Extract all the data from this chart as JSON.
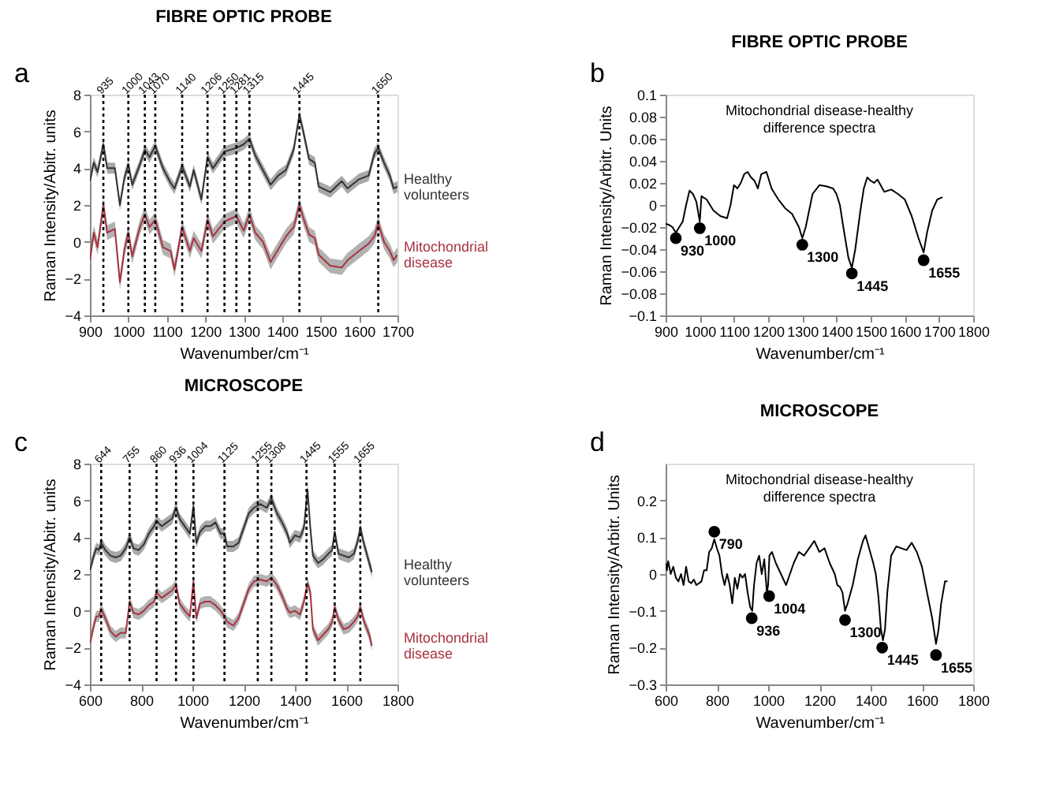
{
  "chart_data": [
    {
      "type": "line",
      "title": "FIBRE OPTIC PROBE",
      "annotations": [
        "a"
      ],
      "xlabel": "Wavenumber/cm⁻¹",
      "ylabel": "Raman Intensity/Abitr. units",
      "x": [
        900,
        910,
        920,
        935,
        945,
        965,
        978,
        990,
        1000,
        1010,
        1030,
        1043,
        1055,
        1070,
        1090,
        1110,
        1120,
        1140,
        1160,
        1170,
        1190,
        1206,
        1220,
        1250,
        1281,
        1300,
        1315,
        1330,
        1350,
        1370,
        1390,
        1410,
        1430,
        1445,
        1455,
        1470,
        1485,
        1495,
        1525,
        1555,
        1570,
        1600,
        1625,
        1640,
        1650,
        1665,
        1680,
        1690,
        1700
      ],
      "series": [
        {
          "name": "Healthy volunteers",
          "color": "#333333",
          "values": [
            3.3,
            4.3,
            3.8,
            5.3,
            4.0,
            4.0,
            2.0,
            3.5,
            4.2,
            3.1,
            4.2,
            5.0,
            4.6,
            5.2,
            4.0,
            3.2,
            2.9,
            4.1,
            3.0,
            3.9,
            2.3,
            4.6,
            4.0,
            4.9,
            5.1,
            5.3,
            5.6,
            4.7,
            3.9,
            3.1,
            3.6,
            3.9,
            5.0,
            6.9,
            6.0,
            4.5,
            4.3,
            3.0,
            2.7,
            3.3,
            2.9,
            3.4,
            3.6,
            4.8,
            5.1,
            4.3,
            3.6,
            2.9,
            3.0
          ],
          "lower": [
            3.0,
            4.0,
            3.5,
            5.0,
            3.7,
            3.7,
            1.7,
            3.2,
            3.9,
            2.8,
            3.9,
            4.7,
            4.3,
            4.9,
            3.7,
            2.9,
            2.6,
            3.8,
            2.7,
            3.6,
            2.0,
            4.3,
            3.7,
            4.6,
            4.8,
            5.0,
            5.3,
            4.4,
            3.6,
            2.8,
            3.3,
            3.6,
            4.7,
            6.6,
            5.7,
            4.2,
            4.0,
            2.7,
            2.4,
            3.0,
            2.6,
            3.1,
            3.3,
            4.5,
            4.8,
            4.0,
            3.3,
            2.6,
            2.7
          ],
          "upper": [
            3.6,
            4.6,
            4.1,
            5.6,
            4.3,
            4.3,
            2.3,
            3.8,
            4.5,
            3.4,
            4.5,
            5.3,
            4.9,
            5.5,
            4.3,
            3.5,
            3.2,
            4.4,
            3.3,
            4.2,
            2.6,
            4.9,
            4.3,
            5.2,
            5.4,
            5.6,
            5.9,
            5.0,
            4.2,
            3.4,
            3.9,
            4.2,
            5.3,
            7.2,
            6.3,
            4.8,
            4.6,
            3.3,
            3.0,
            3.6,
            3.2,
            3.7,
            3.9,
            5.1,
            5.4,
            4.6,
            3.9,
            3.2,
            3.3
          ]
        },
        {
          "name": "Mitochondrial disease",
          "color": "#a83240",
          "values": [
            -1.0,
            0.5,
            -0.3,
            2.0,
            0.5,
            0.7,
            -2.2,
            -0.4,
            0.5,
            -0.8,
            0.8,
            1.5,
            0.8,
            1.2,
            -0.3,
            -0.5,
            -1.5,
            0.8,
            -0.5,
            0.2,
            -0.5,
            1.2,
            0.3,
            1.1,
            1.4,
            0.6,
            1.5,
            0.5,
            0.0,
            -1.1,
            -0.4,
            0.3,
            0.8,
            2.0,
            1.3,
            0.4,
            0.2,
            -0.7,
            -1.3,
            -1.4,
            -1.0,
            -0.5,
            -0.1,
            0.3,
            1.0,
            0.0,
            -0.5,
            -1.0,
            -0.7
          ],
          "lower": [
            -1.4,
            0.1,
            -0.7,
            1.6,
            0.1,
            0.3,
            -2.6,
            -0.8,
            0.1,
            -1.2,
            0.4,
            1.1,
            0.4,
            0.8,
            -0.7,
            -0.9,
            -1.9,
            0.4,
            -0.9,
            -0.2,
            -0.9,
            0.8,
            -0.1,
            0.7,
            1.0,
            0.2,
            1.1,
            0.1,
            -0.4,
            -1.5,
            -0.8,
            -0.1,
            0.4,
            1.6,
            0.9,
            0.0,
            -0.2,
            -1.1,
            -1.7,
            -1.8,
            -1.4,
            -0.9,
            -0.5,
            -0.1,
            0.6,
            -0.4,
            -0.9,
            -1.4,
            -1.1
          ],
          "upper": [
            -0.6,
            0.9,
            0.1,
            2.4,
            0.9,
            1.1,
            -1.8,
            0.0,
            0.9,
            -0.4,
            1.2,
            1.9,
            1.2,
            1.6,
            0.1,
            -0.1,
            -1.1,
            1.2,
            -0.1,
            0.6,
            -0.1,
            1.6,
            0.7,
            1.5,
            1.8,
            1.0,
            1.9,
            0.9,
            0.4,
            -0.7,
            0.0,
            0.7,
            1.2,
            2.4,
            1.7,
            0.8,
            0.6,
            -0.3,
            -0.9,
            -1.0,
            -0.6,
            -0.1,
            0.3,
            0.7,
            1.4,
            0.4,
            -0.1,
            -0.6,
            -0.3
          ]
        }
      ],
      "xlim": [
        900,
        1700
      ],
      "xticks": [
        900,
        1000,
        1100,
        1200,
        1300,
        1400,
        1500,
        1600,
        1700
      ],
      "ylim": [
        -4,
        8
      ],
      "yticks": [
        -4,
        -2,
        0,
        2,
        4,
        6,
        8
      ],
      "ref_lines": [
        {
          "axis": "x",
          "value": 935,
          "label": "935",
          "line_style": "dotted"
        },
        {
          "axis": "x",
          "value": 1000,
          "label": "1000",
          "line_style": "dotted"
        },
        {
          "axis": "x",
          "value": 1043,
          "label": "1043",
          "line_style": "dotted"
        },
        {
          "axis": "x",
          "value": 1070,
          "label": "1070",
          "line_style": "dotted"
        },
        {
          "axis": "x",
          "value": 1140,
          "label": "1140",
          "line_style": "dotted"
        },
        {
          "axis": "x",
          "value": 1206,
          "label": "1206",
          "line_style": "dotted"
        },
        {
          "axis": "x",
          "value": 1250,
          "label": "1250",
          "line_style": "dotted"
        },
        {
          "axis": "x",
          "value": 1281,
          "label": "1281",
          "line_style": "dotted"
        },
        {
          "axis": "x",
          "value": 1315,
          "label": "1315",
          "line_style": "dotted"
        },
        {
          "axis": "x",
          "value": 1445,
          "label": "1445",
          "line_style": "dotted"
        },
        {
          "axis": "x",
          "value": 1650,
          "label": "1650",
          "line_style": "dotted"
        }
      ],
      "legend": false,
      "grid": false
    },
    {
      "type": "line",
      "title": "FIBRE OPTIC PROBE",
      "subtitle": "Mitochondrial disease-healthy\ndifference spectra",
      "xlabel": "Wavenumber/cm⁻¹",
      "ylabel": "Raman Intensity/Arbitr. Units",
      "annotations": [
        "b",
        {
          "text": "930",
          "x": 930,
          "y": -0.03
        },
        {
          "text": "1000",
          "x": 1000,
          "y": -0.021
        },
        {
          "text": "1300",
          "x": 1300,
          "y": -0.036
        },
        {
          "text": "1445",
          "x": 1445,
          "y": -0.062
        },
        {
          "text": "1655",
          "x": 1655,
          "y": -0.05
        }
      ],
      "series": [
        {
          "color": "#000000",
          "x": [
            900,
            910,
            920,
            930,
            940,
            950,
            960,
            970,
            980,
            990,
            1000,
            1005,
            1020,
            1040,
            1060,
            1080,
            1090,
            1100,
            1110,
            1120,
            1130,
            1140,
            1150,
            1160,
            1170,
            1180,
            1195,
            1210,
            1230,
            1250,
            1270,
            1290,
            1300,
            1310,
            1330,
            1350,
            1370,
            1390,
            1400,
            1410,
            1420,
            1435,
            1445,
            1455,
            1470,
            1480,
            1490,
            1500,
            1510,
            1520,
            1540,
            1560,
            1580,
            1600,
            1620,
            1640,
            1655,
            1665,
            1680,
            1695,
            1710
          ],
          "values": [
            -0.017,
            -0.018,
            -0.02,
            -0.025,
            -0.02,
            -0.015,
            0.0,
            0.013,
            0.01,
            0.003,
            -0.015,
            0.008,
            0.005,
            -0.005,
            -0.01,
            -0.012,
            0.0,
            0.018,
            0.015,
            0.02,
            0.028,
            0.03,
            0.025,
            0.022,
            0.015,
            0.028,
            0.03,
            0.015,
            0.005,
            -0.003,
            -0.008,
            -0.02,
            -0.03,
            -0.02,
            0.01,
            0.018,
            0.017,
            0.015,
            0.01,
            0.0,
            -0.02,
            -0.048,
            -0.057,
            -0.04,
            -0.005,
            0.015,
            0.025,
            0.022,
            0.02,
            0.023,
            0.012,
            0.014,
            0.01,
            0.005,
            -0.01,
            -0.03,
            -0.043,
            -0.025,
            -0.005,
            0.005,
            0.007
          ]
        },
        {
          "type": "scatter",
          "marker": "circle",
          "color": "#000000",
          "x": [
            930,
            1000,
            1300,
            1445,
            1655
          ],
          "values": [
            -0.03,
            -0.021,
            -0.036,
            -0.062,
            -0.05
          ]
        }
      ],
      "xlim": [
        900,
        1800
      ],
      "xticks": [
        900,
        1000,
        1100,
        1200,
        1300,
        1400,
        1500,
        1600,
        1700,
        1800
      ],
      "ylim": [
        -0.1,
        0.1
      ],
      "yticks": [
        -0.1,
        -0.08,
        -0.06,
        -0.04,
        -0.02,
        0,
        0.02,
        0.04,
        0.06,
        0.08,
        0.1
      ],
      "grid": false
    },
    {
      "type": "line",
      "title": "MICROSCOPE",
      "annotations": [
        "c"
      ],
      "xlabel": "Wavenumber/cm⁻¹",
      "ylabel": "Raman Intensity/Abitr. units",
      "x": [
        600,
        615,
        625,
        635,
        644,
        660,
        680,
        700,
        720,
        740,
        755,
        770,
        790,
        810,
        830,
        850,
        860,
        880,
        900,
        920,
        936,
        950,
        970,
        990,
        1004,
        1015,
        1030,
        1050,
        1070,
        1090,
        1110,
        1125,
        1135,
        1160,
        1180,
        1200,
        1220,
        1240,
        1265,
        1290,
        1308,
        1330,
        1350,
        1370,
        1380,
        1400,
        1420,
        1435,
        1449,
        1460,
        1470,
        1490,
        1510,
        1530,
        1545,
        1555,
        1570,
        1590,
        1610,
        1630,
        1645,
        1655,
        1670,
        1690,
        1700
      ],
      "series": [
        {
          "name": "Healthy volunteers",
          "color": "#333333",
          "values": [
            2.2,
            3.0,
            3.4,
            3.3,
            3.7,
            3.3,
            3.0,
            2.9,
            3.0,
            3.4,
            4.0,
            3.4,
            3.3,
            3.6,
            4.2,
            4.6,
            4.9,
            4.6,
            4.8,
            5.0,
            5.6,
            5.0,
            4.6,
            4.2,
            5.7,
            3.7,
            4.3,
            4.6,
            4.6,
            4.8,
            4.2,
            4.2,
            3.5,
            3.5,
            3.7,
            4.5,
            5.3,
            5.6,
            5.8,
            5.6,
            6.1,
            5.3,
            4.8,
            4.2,
            3.7,
            4.1,
            4.0,
            4.5,
            6.6,
            4.5,
            3.0,
            2.6,
            2.8,
            3.1,
            3.3,
            4.3,
            3.1,
            3.0,
            2.9,
            3.1,
            3.8,
            4.5,
            3.6,
            2.6,
            2.1
          ],
          "lower": [
            1.9,
            2.7,
            3.1,
            3.0,
            3.4,
            3.0,
            2.7,
            2.6,
            2.7,
            3.1,
            3.7,
            3.1,
            3.0,
            3.3,
            3.9,
            4.3,
            4.6,
            4.3,
            4.5,
            4.7,
            5.3,
            4.7,
            4.3,
            3.9,
            5.4,
            3.4,
            4.0,
            4.3,
            4.3,
            4.5,
            3.9,
            3.9,
            3.2,
            3.2,
            3.4,
            4.2,
            5.0,
            5.3,
            5.5,
            5.3,
            5.8,
            5.0,
            4.5,
            3.9,
            3.4,
            3.8,
            3.7,
            4.2,
            6.3,
            4.2,
            2.7,
            2.3,
            2.5,
            2.8,
            3.0,
            4.0,
            2.8,
            2.7,
            2.6,
            2.8,
            3.5,
            4.2,
            3.3,
            2.3,
            1.8
          ],
          "upper": [
            2.5,
            3.3,
            3.7,
            3.6,
            4.0,
            3.6,
            3.3,
            3.2,
            3.3,
            3.7,
            4.3,
            3.7,
            3.6,
            3.9,
            4.5,
            4.9,
            5.2,
            4.9,
            5.1,
            5.3,
            5.9,
            5.3,
            4.9,
            4.5,
            6.0,
            4.0,
            4.6,
            4.9,
            4.9,
            5.1,
            4.5,
            4.5,
            3.8,
            3.8,
            4.0,
            4.8,
            5.6,
            5.9,
            6.1,
            5.9,
            6.4,
            5.6,
            5.1,
            4.5,
            4.0,
            4.4,
            4.3,
            4.8,
            6.9,
            4.8,
            3.3,
            2.9,
            3.1,
            3.4,
            3.6,
            4.6,
            3.4,
            3.3,
            3.2,
            3.4,
            4.1,
            4.8,
            3.9,
            2.9,
            2.4
          ]
        },
        {
          "name": "Mitochondrial disease",
          "color": "#a83240",
          "values": [
            -1.8,
            -0.8,
            -0.3,
            -0.3,
            0.1,
            -0.4,
            -1.1,
            -1.4,
            -1.2,
            -1.2,
            0.5,
            -0.1,
            -0.2,
            0.0,
            0.3,
            0.5,
            1.0,
            0.7,
            0.9,
            1.1,
            1.4,
            0.4,
            0.0,
            -0.3,
            1.6,
            -0.4,
            0.4,
            0.5,
            0.5,
            0.3,
            0.0,
            -0.3,
            -0.6,
            -0.8,
            -0.4,
            0.4,
            1.2,
            1.6,
            1.7,
            1.6,
            1.8,
            1.4,
            0.8,
            0.1,
            -0.1,
            0.0,
            -0.2,
            0.5,
            1.5,
            1.0,
            -1.0,
            -1.6,
            -1.3,
            -1.0,
            -0.6,
            0.2,
            -0.5,
            -1.0,
            -0.9,
            -0.6,
            -0.3,
            0.2,
            -0.6,
            -1.3,
            -1.9
          ],
          "lower": [
            -2.1,
            -1.1,
            -0.6,
            -0.6,
            -0.2,
            -0.7,
            -1.4,
            -1.7,
            -1.5,
            -1.5,
            0.2,
            -0.4,
            -0.5,
            -0.3,
            0.0,
            0.2,
            0.7,
            0.4,
            0.6,
            0.8,
            1.1,
            0.1,
            -0.3,
            -0.6,
            1.3,
            -0.7,
            0.1,
            0.2,
            0.2,
            0.0,
            -0.3,
            -0.6,
            -0.9,
            -1.1,
            -0.7,
            0.1,
            0.9,
            1.3,
            1.4,
            1.3,
            1.5,
            1.1,
            0.5,
            -0.2,
            -0.4,
            -0.3,
            -0.5,
            0.2,
            1.2,
            0.7,
            -1.3,
            -1.9,
            -1.6,
            -1.3,
            -0.9,
            -0.1,
            -0.8,
            -1.3,
            -1.2,
            -0.9,
            -0.6,
            -0.1,
            -0.9,
            -1.6,
            -2.2
          ],
          "upper": [
            -1.5,
            -0.5,
            0.0,
            0.0,
            0.4,
            -0.1,
            -0.8,
            -1.1,
            -0.9,
            -0.9,
            0.8,
            0.2,
            0.1,
            0.3,
            0.6,
            0.8,
            1.3,
            1.0,
            1.2,
            1.4,
            1.7,
            0.7,
            0.3,
            0.0,
            1.9,
            -0.1,
            0.7,
            0.8,
            0.8,
            0.6,
            0.3,
            0.0,
            -0.3,
            -0.5,
            -0.1,
            0.7,
            1.5,
            1.9,
            2.0,
            1.9,
            2.1,
            1.7,
            1.1,
            0.4,
            0.2,
            0.3,
            0.1,
            0.8,
            1.8,
            1.3,
            -0.7,
            -1.3,
            -1.0,
            -0.7,
            -0.3,
            0.5,
            -0.2,
            -0.7,
            -0.6,
            -0.3,
            0.0,
            0.5,
            -0.3,
            -1.0,
            -1.6
          ]
        }
      ],
      "xlim": [
        600,
        1800
      ],
      "xticks": [
        600,
        800,
        1000,
        1200,
        1400,
        1600,
        1800
      ],
      "ylim": [
        -4,
        8
      ],
      "yticks": [
        -4,
        -2,
        0,
        2,
        4,
        6,
        8
      ],
      "ref_lines": [
        {
          "axis": "x",
          "value": 644,
          "label": "644",
          "line_style": "dotted"
        },
        {
          "axis": "x",
          "value": 755,
          "label": "755",
          "line_style": "dotted"
        },
        {
          "axis": "x",
          "value": 860,
          "label": "860",
          "line_style": "dotted"
        },
        {
          "axis": "x",
          "value": 936,
          "label": "936",
          "line_style": "dotted"
        },
        {
          "axis": "x",
          "value": 1004,
          "label": "1004",
          "line_style": "dotted"
        },
        {
          "axis": "x",
          "value": 1125,
          "label": "1125",
          "line_style": "dotted"
        },
        {
          "axis": "x",
          "value": 1255,
          "label": "1255",
          "line_style": "dotted"
        },
        {
          "axis": "x",
          "value": 1308,
          "label": "1308",
          "line_style": "dotted"
        },
        {
          "axis": "x",
          "value": 1445,
          "label": "1445",
          "line_style": "dotted"
        },
        {
          "axis": "x",
          "value": 1555,
          "label": "1555",
          "line_style": "dotted"
        },
        {
          "axis": "x",
          "value": 1655,
          "label": "1655",
          "line_style": "dotted"
        }
      ],
      "legend": false,
      "grid": false
    },
    {
      "type": "line",
      "title": "MICROSCOPE",
      "subtitle": "Mitochondrial disease-healthy\ndifference spectra",
      "xlabel": "Wavenumber/cm⁻¹",
      "ylabel": "Raman Intensity/Arbitr. Units",
      "annotations": [
        "d",
        {
          "text": "790",
          "x": 790,
          "y": 0.115
        },
        {
          "text": "936",
          "x": 936,
          "y": -0.12
        },
        {
          "text": "1004",
          "x": 1004,
          "y": -0.06
        },
        {
          "text": "1300",
          "x": 1300,
          "y": -0.125
        },
        {
          "text": "1445",
          "x": 1445,
          "y": -0.2
        },
        {
          "text": "1655",
          "x": 1655,
          "y": -0.22
        }
      ],
      "series": [
        {
          "color": "#000000",
          "x": [
            600,
            605,
            610,
            620,
            630,
            640,
            650,
            660,
            670,
            680,
            690,
            700,
            710,
            720,
            740,
            750,
            760,
            770,
            780,
            790,
            800,
            810,
            820,
            830,
            840,
            850,
            860,
            870,
            880,
            890,
            900,
            910,
            920,
            930,
            938,
            945,
            955,
            965,
            975,
            985,
            995,
            1000,
            1005,
            1015,
            1030,
            1050,
            1070,
            1080,
            1100,
            1120,
            1140,
            1160,
            1180,
            1200,
            1220,
            1240,
            1260,
            1270,
            1280,
            1290,
            1300,
            1310,
            1330,
            1350,
            1370,
            1380,
            1390,
            1410,
            1420,
            1430,
            1440,
            1448,
            1456,
            1465,
            1480,
            1500,
            1520,
            1540,
            1560,
            1580,
            1600,
            1620,
            1640,
            1655,
            1665,
            1675,
            1690,
            1700
          ],
          "values": [
            0.03,
            0.01,
            0.035,
            0.0,
            0.02,
            -0.01,
            -0.02,
            0.0,
            -0.03,
            0.02,
            -0.02,
            -0.025,
            -0.015,
            -0.03,
            -0.02,
            0.01,
            0.01,
            0.06,
            0.07,
            0.095,
            0.07,
            0.05,
            0.0,
            -0.03,
            0.0,
            -0.03,
            -0.08,
            -0.01,
            -0.04,
            0.0,
            -0.01,
            0.0,
            -0.05,
            -0.09,
            -0.1,
            -0.03,
            0.03,
            0.05,
            0.0,
            0.04,
            -0.05,
            -0.03,
            0.05,
            0.06,
            0.03,
            0.0,
            -0.03,
            -0.01,
            0.03,
            0.06,
            0.05,
            0.07,
            0.09,
            0.06,
            0.07,
            0.03,
            0.0,
            -0.03,
            -0.035,
            -0.05,
            -0.1,
            -0.08,
            -0.03,
            0.04,
            0.09,
            0.105,
            0.08,
            0.03,
            0.0,
            -0.06,
            -0.15,
            -0.18,
            -0.15,
            -0.05,
            0.05,
            0.075,
            0.07,
            0.065,
            0.085,
            0.06,
            0.02,
            -0.05,
            -0.12,
            -0.19,
            -0.15,
            -0.08,
            -0.02,
            -0.02
          ]
        },
        {
          "type": "scatter",
          "marker": "circle",
          "color": "#000000",
          "x": [
            790,
            936,
            1004,
            1300,
            1445,
            1655
          ],
          "values": [
            0.115,
            -0.12,
            -0.06,
            -0.125,
            -0.2,
            -0.22
          ]
        }
      ],
      "xlim": [
        600,
        1800
      ],
      "xticks": [
        600,
        800,
        1000,
        1200,
        1400,
        1600,
        1800
      ],
      "ylim": [
        -0.3,
        0.3
      ],
      "yticks": [
        -0.3,
        -0.2,
        -0.1,
        0,
        0.1,
        0.2
      ],
      "grid": false
    }
  ]
}
